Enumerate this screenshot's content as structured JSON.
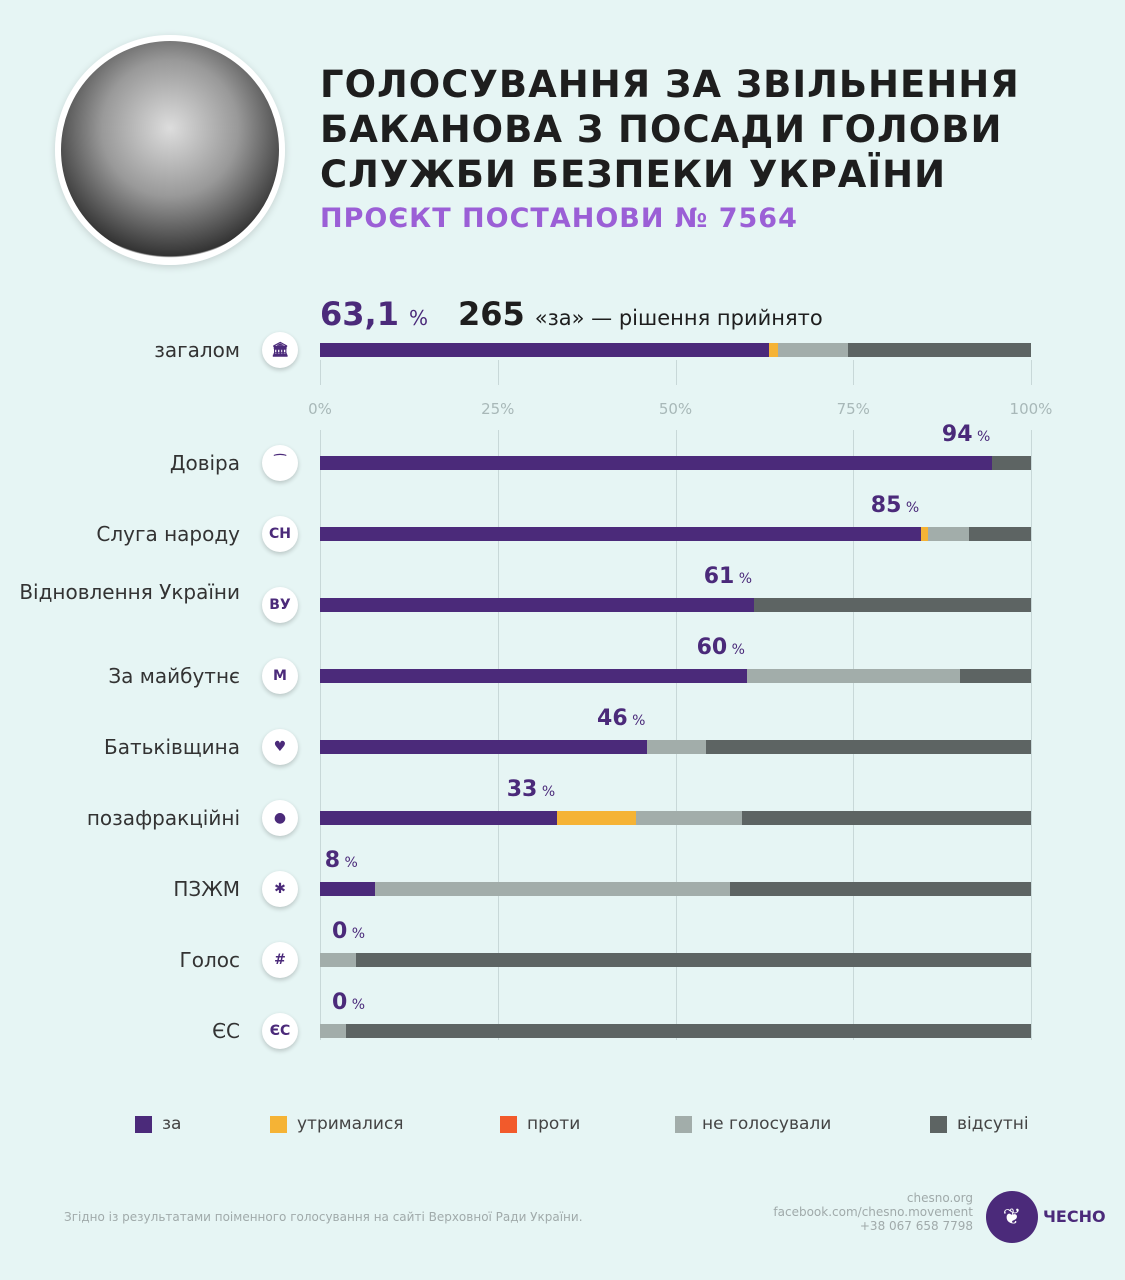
{
  "header": {
    "title_lines": [
      "ГОЛОСУВАННЯ ЗА ЗВІЛЬНЕННЯ",
      "БАКАНОВА З ПОСАДИ ГОЛОВИ",
      "СЛУЖБИ БЕЗПЕКИ УКРАЇНИ"
    ],
    "subtitle": "ПРОЄКТ ПОСТАНОВИ № 7564"
  },
  "summary": {
    "percent": "63,1",
    "percent_sign": "%",
    "count": "265",
    "text": "«за» — рішення прийнято"
  },
  "colors": {
    "za": "#4b2a7a",
    "abstained": "#f5b335",
    "against": "#f25a2b",
    "not_voted": "#a2adaa",
    "absent": "#5d6463"
  },
  "chart_data": {
    "type": "bar",
    "stacked": true,
    "orientation": "horizontal",
    "xlim": [
      0,
      100
    ],
    "ticks": [
      "0%",
      "25%",
      "50%",
      "75%",
      "100%"
    ],
    "legend": [
      "за",
      "утрималися",
      "проти",
      "не голосували",
      "відсутні"
    ],
    "overall": {
      "name": "загалом",
      "icon": "parliament-icon",
      "values": [
        63.1,
        1.3,
        0,
        9.8,
        25.8
      ]
    },
    "rows": [
      {
        "name": "Довіра",
        "icon": "dovira-logo",
        "label": "94",
        "values": [
          94.5,
          0,
          0,
          0,
          5.5
        ]
      },
      {
        "name": "Слуга народу",
        "icon": "sluha-logo",
        "icon_text": "СН",
        "label": "85",
        "values": [
          84.5,
          1,
          0,
          5.8,
          8.7
        ]
      },
      {
        "name": "Відновлення України",
        "icon": "vu-logo",
        "icon_text": "ВУ",
        "label": "61",
        "values": [
          61,
          0,
          0,
          0,
          39
        ]
      },
      {
        "name": "За майбутнє",
        "icon": "za-maibutnie-logo",
        "icon_text": "M",
        "label": "60",
        "values": [
          60,
          0,
          0,
          30,
          10
        ]
      },
      {
        "name": "Батьківщина",
        "icon": "heart-icon",
        "icon_text": "♥",
        "label": "46",
        "values": [
          46,
          0,
          0,
          8.3,
          45.7
        ]
      },
      {
        "name": "позафракційні",
        "icon": "person-icon",
        "icon_text": "●",
        "label": "33",
        "values": [
          33.3,
          11.1,
          0,
          15,
          40.6
        ]
      },
      {
        "name": "ПЗЖМ",
        "icon": "pzzhm-logo",
        "icon_text": "✱",
        "label": "8",
        "values": [
          7.7,
          0,
          0,
          50,
          42.3
        ]
      },
      {
        "name": "Голос",
        "icon": "holos-logo",
        "icon_text": "#",
        "label": "0",
        "values": [
          0,
          0,
          0,
          5,
          95
        ]
      },
      {
        "name": "ЄС",
        "icon": "es-logo",
        "icon_text": "ЄС",
        "label": "0",
        "values": [
          0,
          0,
          0,
          3.7,
          96.3
        ]
      }
    ]
  },
  "footer": {
    "source": "Згідно із результатами поіменного голосування на сайті Верховної Ради України.",
    "site": "chesno.org",
    "facebook": "facebook.com/chesno.movement",
    "phone": "+38 067 658 7798",
    "logo": "ЧЕСНО"
  }
}
